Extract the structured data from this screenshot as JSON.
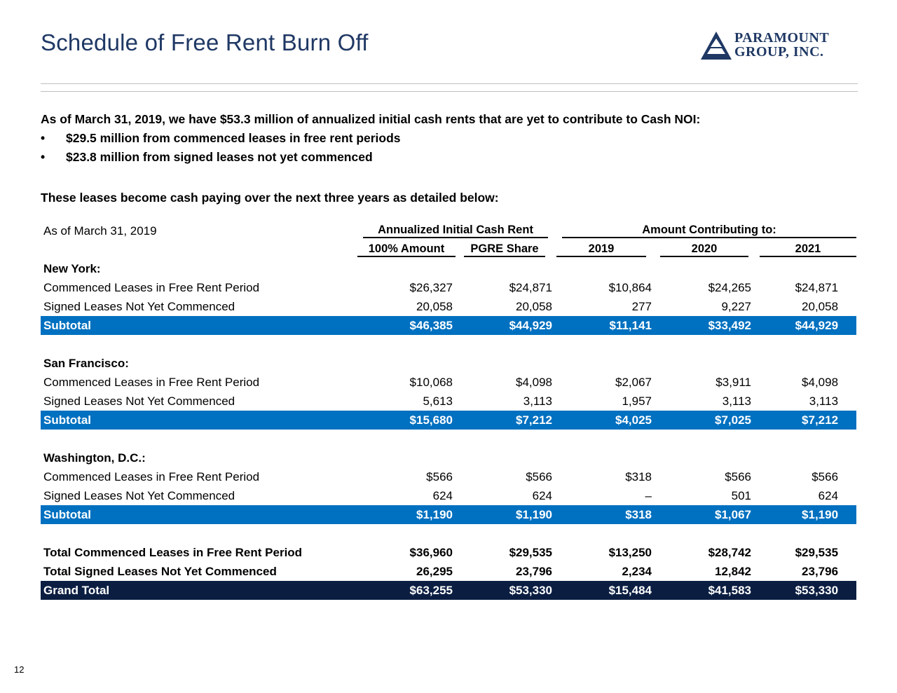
{
  "title": "Schedule of Free Rent Burn Off",
  "logo": {
    "line1": "PARAMOUNT",
    "line2": "GROUP, INC.",
    "mark": "triangle-logo-icon"
  },
  "intro": {
    "lead": "As of March 31, 2019, we have $53.3 million of annualized initial cash rents that are yet to contribute to Cash NOI:",
    "bullets": [
      "$29.5 million from commenced leases in free rent periods",
      "$23.8 million from signed leases not yet commenced"
    ],
    "bullet_char": "•",
    "lead2": "These leases become cash paying over the next three years as detailed below:"
  },
  "table": {
    "as_of": "As of March 31, 2019",
    "group1": "Annualized Initial Cash Rent",
    "group2": "Amount Contributing to:",
    "columns": [
      "100% Amount",
      "PGRE Share",
      "2019",
      "2020",
      "2021"
    ],
    "sections": [
      {
        "name": "New York:",
        "rows": [
          {
            "label": "Commenced Leases in Free Rent Period",
            "values": [
              "$26,327",
              "$24,871",
              "$10,864",
              "$24,265",
              "$24,871"
            ]
          },
          {
            "label": "Signed Leases Not Yet Commenced",
            "values": [
              "20,058",
              "20,058",
              "277",
              "9,227",
              "20,058"
            ]
          }
        ],
        "subtotal": {
          "label": "Subtotal",
          "values": [
            "$46,385",
            "$44,929",
            "$11,141",
            "$33,492",
            "$44,929"
          ]
        }
      },
      {
        "name": "San Francisco:",
        "rows": [
          {
            "label": "Commenced Leases in Free Rent Period",
            "values": [
              "$10,068",
              "$4,098",
              "$2,067",
              "$3,911",
              "$4,098"
            ]
          },
          {
            "label": "Signed Leases Not Yet Commenced",
            "values": [
              "5,613",
              "3,113",
              "1,957",
              "3,113",
              "3,113"
            ]
          }
        ],
        "subtotal": {
          "label": "Subtotal",
          "values": [
            "$15,680",
            "$7,212",
            "$4,025",
            "$7,025",
            "$7,212"
          ]
        }
      },
      {
        "name": "Washington, D.C.:",
        "rows": [
          {
            "label": "Commenced Leases in Free Rent Period",
            "values": [
              "$566",
              "$566",
              "$318",
              "$566",
              "$566"
            ]
          },
          {
            "label": "Signed Leases Not Yet Commenced",
            "values": [
              "624",
              "624",
              "–",
              "501",
              "624"
            ]
          }
        ],
        "subtotal": {
          "label": "Subtotal",
          "values": [
            "$1,190",
            "$1,190",
            "$318",
            "$1,067",
            "$1,190"
          ]
        }
      }
    ],
    "totals": [
      {
        "label": "Total Commenced Leases in Free Rent Period",
        "values": [
          "$36,960",
          "$29,535",
          "$13,250",
          "$28,742",
          "$29,535"
        ]
      },
      {
        "label": "Total Signed Leases Not Yet Commenced",
        "values": [
          "26,295",
          "23,796",
          "2,234",
          "12,842",
          "23,796"
        ]
      }
    ],
    "grand_total": {
      "label": "Grand Total",
      "values": [
        "$63,255",
        "$53,330",
        "$15,484",
        "$41,583",
        "$53,330"
      ]
    }
  },
  "page_number": "12",
  "colors": {
    "title": "#1f3864",
    "subtotal_bg": "#0070c0",
    "grand_total_bg": "#0b1e42"
  }
}
